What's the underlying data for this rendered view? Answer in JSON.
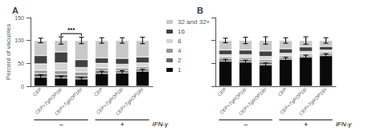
{
  "chart_data": [
    {
      "type": "bar",
      "title": "A",
      "stacked": true,
      "categories": [
        "CEP",
        "CEP+TgROP18I",
        "CEP+TgROP18II",
        "CEP",
        "CEP+TgROP18I",
        "CEP+TgROP18II"
      ],
      "series": [
        {
          "name": "1",
          "color": "#0a0a0a",
          "values": [
            20,
            18,
            16,
            28,
            29,
            33
          ]
        },
        {
          "name": "2",
          "color": "#636363",
          "values": [
            8,
            8,
            7,
            6,
            5,
            5
          ]
        },
        {
          "name": "4",
          "color": "#969696",
          "values": [
            7,
            8,
            8,
            6,
            6,
            5
          ]
        },
        {
          "name": "8",
          "color": "#d4d4d4",
          "values": [
            14,
            17,
            10,
            10,
            8,
            8
          ]
        },
        {
          "name": "16",
          "color": "#404040",
          "values": [
            18,
            24,
            17,
            12,
            13,
            13
          ]
        },
        {
          "name": "32 and 32+",
          "color": "#c8c8c8",
          "values": [
            33,
            25,
            42,
            38,
            39,
            36
          ]
        }
      ],
      "ylabel": "Percent of vacuoles",
      "ylim": [
        0,
        150
      ],
      "yticks": [
        0,
        50,
        100,
        150
      ],
      "grid": false,
      "legend": "right",
      "err_low_values": [
        20,
        18,
        16,
        28,
        29,
        33
      ],
      "err_low": [
        5,
        4,
        3,
        5,
        5,
        4
      ],
      "err_high_values": [
        100,
        100,
        100,
        100,
        100,
        100
      ],
      "err_high": [
        5,
        8,
        7,
        6,
        6,
        7
      ],
      "significance": {
        "label": "***",
        "between": [
          1,
          2
        ]
      },
      "groups": [
        {
          "label": "−",
          "from": 0,
          "to": 2
        },
        {
          "label": "+",
          "from": 3,
          "to": 5
        }
      ],
      "group_title": "IFN-γ"
    },
    {
      "type": "bar",
      "title": "B",
      "stacked": true,
      "categories": [
        "CEP",
        "CEP+TgROP18I",
        "CEP+TgROP18II",
        "CEP",
        "CEP+TgROP18I",
        "CEP+TgROP18II"
      ],
      "series": [
        {
          "name": "1",
          "color": "#0a0a0a",
          "values": [
            55,
            53,
            47,
            59,
            64,
            67
          ]
        },
        {
          "name": "2",
          "color": "#636363",
          "values": [
            5,
            5,
            6,
            4,
            3,
            4
          ]
        },
        {
          "name": "4",
          "color": "#969696",
          "values": [
            4,
            5,
            5,
            4,
            4,
            4
          ]
        },
        {
          "name": "8",
          "color": "#d4d4d4",
          "values": [
            5,
            6,
            7,
            5,
            5,
            4
          ]
        },
        {
          "name": "16",
          "color": "#404040",
          "values": [
            10,
            10,
            12,
            10,
            10,
            8
          ]
        },
        {
          "name": "32 and 32+",
          "color": "#c8c8c8",
          "values": [
            21,
            21,
            23,
            18,
            14,
            13
          ]
        }
      ],
      "ylim": [
        0,
        150
      ],
      "yticks": [
        0,
        50,
        100,
        150
      ],
      "grid": false,
      "tick_labels": "x",
      "err_low_values": [
        55,
        53,
        47,
        59,
        64,
        67
      ],
      "err_low": [
        4,
        4,
        4,
        4,
        4,
        4
      ],
      "err_high_values": [
        100,
        100,
        100,
        100,
        100,
        100
      ],
      "err_high": [
        5,
        7,
        8,
        6,
        8,
        6
      ],
      "groups": [
        {
          "label": "−",
          "from": 0,
          "to": 2
        },
        {
          "label": "+",
          "from": 3,
          "to": 5
        }
      ],
      "group_title": "IFN-γ"
    }
  ]
}
